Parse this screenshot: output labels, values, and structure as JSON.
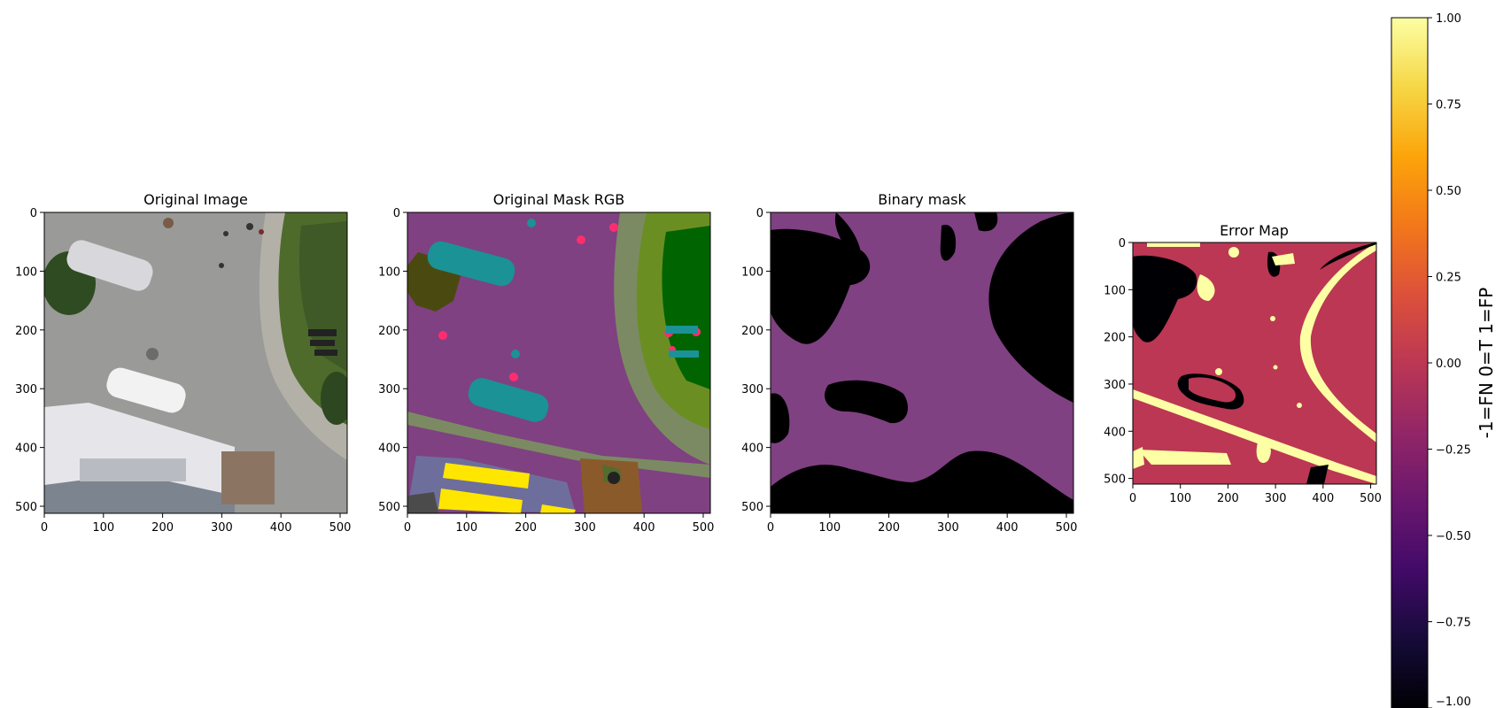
{
  "panels": [
    {
      "title": "Original Image"
    },
    {
      "title": "Original Mask RGB"
    },
    {
      "title": "Binary mask"
    },
    {
      "title": "Error Map"
    }
  ],
  "colorbar": {
    "label": "-1=FN 0=T 1=FP",
    "ticks": [
      "1.00",
      "0.75",
      "0.50",
      "0.25",
      "0.00",
      "−0.25",
      "−0.50",
      "−0.75",
      "−1.00"
    ],
    "colormap": "inferno"
  },
  "chart_data": [
    {
      "type": "heatmap",
      "title": "Original Image",
      "xlim": [
        0,
        512
      ],
      "ylim": [
        512,
        0
      ],
      "xticks": [
        0,
        100,
        200,
        300,
        400,
        500
      ],
      "yticks": [
        0,
        100,
        200,
        300,
        400,
        500
      ],
      "content": "RGB aerial photograph"
    },
    {
      "type": "heatmap",
      "title": "Original Mask RGB",
      "xlim": [
        0,
        512
      ],
      "ylim": [
        512,
        0
      ],
      "xticks": [
        0,
        100,
        200,
        300,
        400,
        500
      ],
      "yticks": [
        0,
        100,
        200,
        300,
        400,
        500
      ],
      "content": "RGB segmentation mask",
      "colors": {
        "background": "#7f4181",
        "vehicle": "#1a9296",
        "vegetation": "#6b8e23",
        "grass": "#006400",
        "roof": "#6e6e9c",
        "highlight": "#ffe600",
        "person": "#ff2d6f"
      }
    },
    {
      "type": "heatmap",
      "title": "Binary mask",
      "xlim": [
        0,
        512
      ],
      "ylim": [
        512,
        0
      ],
      "xticks": [
        0,
        100,
        200,
        300,
        400,
        500
      ],
      "yticks": [
        0,
        100,
        200,
        300,
        400,
        500
      ],
      "content": "binary mask",
      "colors": {
        "positive": "#7f4181",
        "negative": "#000000"
      }
    },
    {
      "type": "heatmap",
      "title": "Error Map",
      "xlim": [
        0,
        512
      ],
      "ylim": [
        512,
        0
      ],
      "xticks": [
        0,
        100,
        200,
        300,
        400,
        500
      ],
      "yticks": [
        0,
        100,
        200,
        300,
        400,
        500
      ],
      "value_range": [
        -1,
        1
      ],
      "colors": {
        "-1": "#000004",
        "0": "#bb3754",
        "1": "#fcffa4"
      }
    }
  ]
}
